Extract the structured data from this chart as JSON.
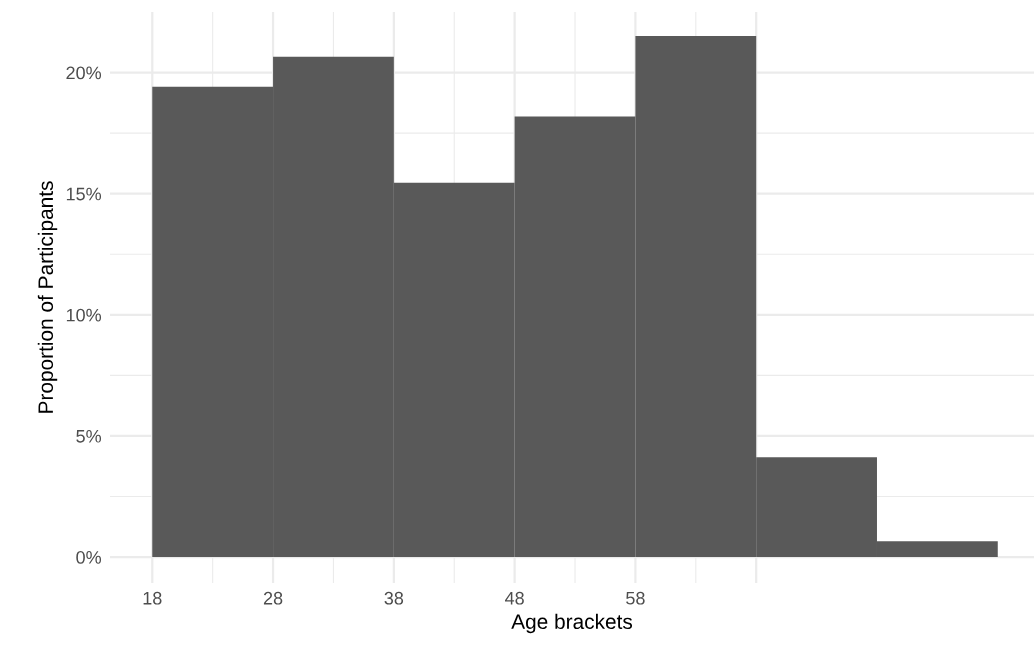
{
  "chart_data": {
    "type": "histogram",
    "xlabel": "Age brackets",
    "ylabel": "Proportion of Participants",
    "bins": [
      18,
      28,
      38,
      48,
      58,
      68,
      78,
      88
    ],
    "values": [
      19.41,
      20.65,
      15.45,
      18.19,
      21.51,
      4.12,
      0.65
    ],
    "color": "#595959",
    "xlim": [
      14.5,
      91
    ],
    "ylim": [
      -1.07,
      22.5
    ],
    "xticks": [
      18,
      28,
      38,
      48,
      58,
      {
        "value": 68,
        "label": null
      }
    ],
    "yticks": [
      {
        "value": 0,
        "label": "0%"
      },
      {
        "value": 5,
        "label": "5%"
      },
      {
        "value": 10,
        "label": "10%"
      },
      {
        "value": 15,
        "label": "15%"
      },
      {
        "value": 20,
        "label": "20%"
      }
    ],
    "grid": true
  }
}
